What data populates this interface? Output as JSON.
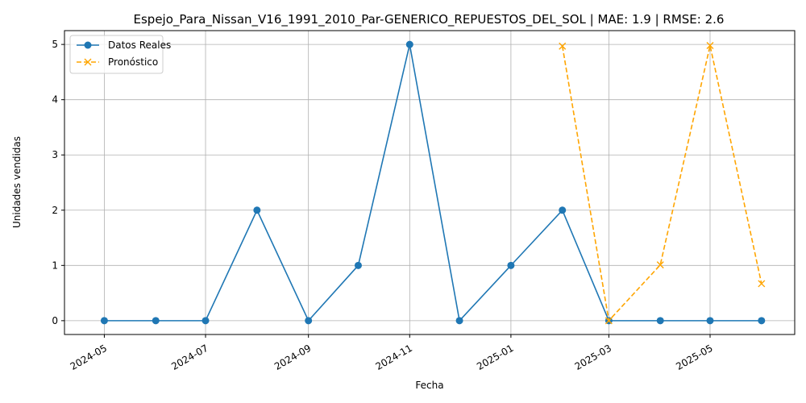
{
  "chart_data": {
    "type": "line",
    "title": "Espejo_Para_Nissan_V16_1991_2010_Par-GENERICO_REPUESTOS_DEL_SOL | MAE: 1.9 | RMSE: 2.6",
    "xlabel": "Fecha",
    "ylabel": "Unidades vendidas",
    "ylim": [
      -0.25,
      5.25
    ],
    "xlim": [
      "2024-04-07",
      "2025-06-21"
    ],
    "grid": true,
    "legend_position": "top-left",
    "x_ticks": [
      "2024-05",
      "2024-07",
      "2024-09",
      "2024-11",
      "2025-01",
      "2025-03",
      "2025-05"
    ],
    "y_ticks": [
      0,
      1,
      2,
      3,
      4,
      5
    ],
    "series": [
      {
        "name": "Datos Reales",
        "color": "#1f77b4",
        "style": "solid",
        "marker": "circle",
        "x": [
          "2024-05-01",
          "2024-06-01",
          "2024-07-01",
          "2024-08-01",
          "2024-09-01",
          "2024-10-01",
          "2024-11-01",
          "2024-12-01",
          "2025-01-01",
          "2025-02-01",
          "2025-03-01",
          "2025-04-01",
          "2025-05-01",
          "2025-06-01"
        ],
        "values": [
          0,
          0,
          0,
          2,
          0,
          1,
          5,
          0,
          1,
          2,
          0,
          0,
          0,
          0
        ]
      },
      {
        "name": "Pronóstico",
        "color": "#ffa500",
        "style": "dashed",
        "marker": "x",
        "x": [
          "2025-02-01",
          "2025-03-01",
          "2025-04-01",
          "2025-05-01",
          "2025-06-01"
        ],
        "values": [
          4.97,
          0,
          1.01,
          4.98,
          0.67
        ]
      }
    ]
  }
}
